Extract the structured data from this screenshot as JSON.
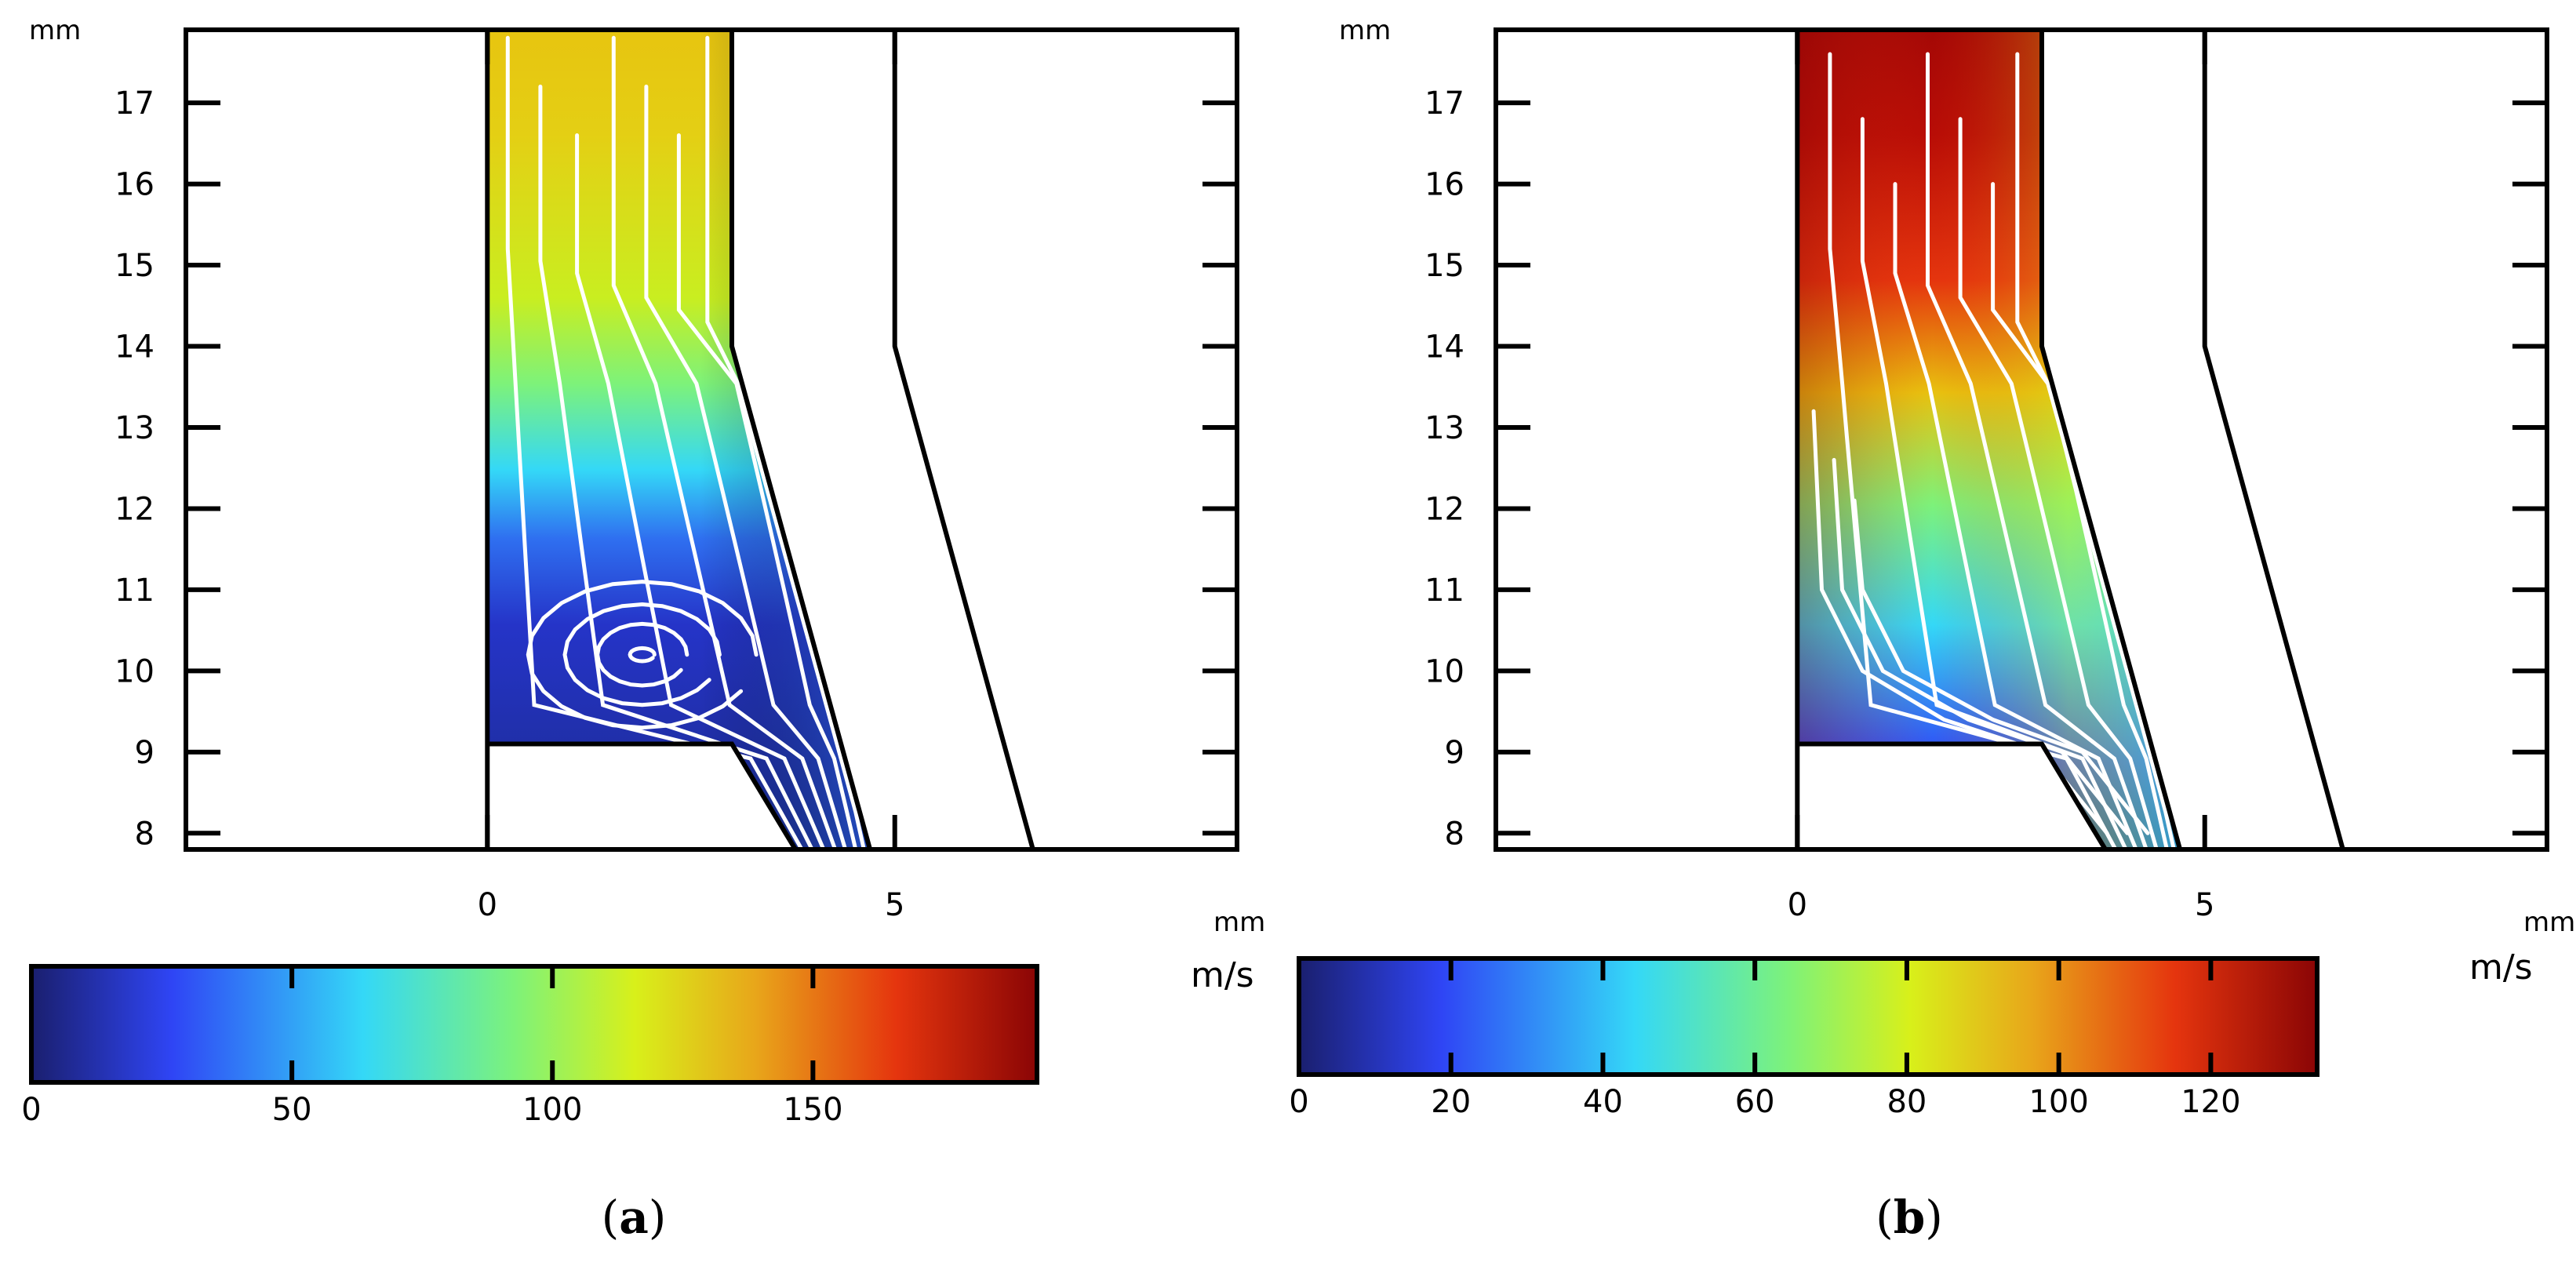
{
  "chart_data": [
    {
      "type": "heatmap",
      "panel_label": "(a)",
      "panel_letter": "a",
      "title": "",
      "x_unit": "mm",
      "y_unit": "mm",
      "xlim": [
        -3.7,
        9.2
      ],
      "ylim": [
        7.8,
        17.9
      ],
      "x_ticks": [
        0,
        5
      ],
      "y_ticks": [
        8,
        9,
        10,
        11,
        12,
        13,
        14,
        15,
        16,
        17
      ],
      "colorbar": {
        "unit": "m/s",
        "range": [
          0,
          193
        ],
        "ticks": [
          0,
          50,
          100,
          150
        ],
        "colormap": [
          "#1a1f6e",
          "#2f45f5",
          "#34d8f7",
          "#7df27a",
          "#d8f01a",
          "#e8a61a",
          "#e5350e",
          "#8a0505"
        ]
      },
      "field_range_m_s": [
        0,
        110
      ],
      "recirculation_vortex_center_mm": [
        1.9,
        10.2
      ],
      "notes": "Large recirculation vortex in lower-left of channel"
    },
    {
      "type": "heatmap",
      "panel_label": "(b)",
      "panel_letter": "b",
      "title": "",
      "x_unit": "mm",
      "y_unit": "mm",
      "xlim": [
        -3.7,
        9.2
      ],
      "ylim": [
        7.8,
        17.9
      ],
      "x_ticks": [
        0,
        5
      ],
      "y_ticks": [
        8,
        9,
        10,
        11,
        12,
        13,
        14,
        15,
        16,
        17
      ],
      "colorbar": {
        "unit": "m/s",
        "range": [
          0,
          134
        ],
        "ticks": [
          0,
          20,
          40,
          60,
          80,
          100,
          120
        ],
        "colormap": [
          "#1a1f6e",
          "#2f45f5",
          "#34d8f7",
          "#7df27a",
          "#d8f01a",
          "#e8a61a",
          "#e5350e",
          "#8a0505"
        ]
      },
      "field_range_m_s": [
        0,
        130
      ],
      "notes": "No recirculation; streamlines converge toward outlet"
    }
  ]
}
